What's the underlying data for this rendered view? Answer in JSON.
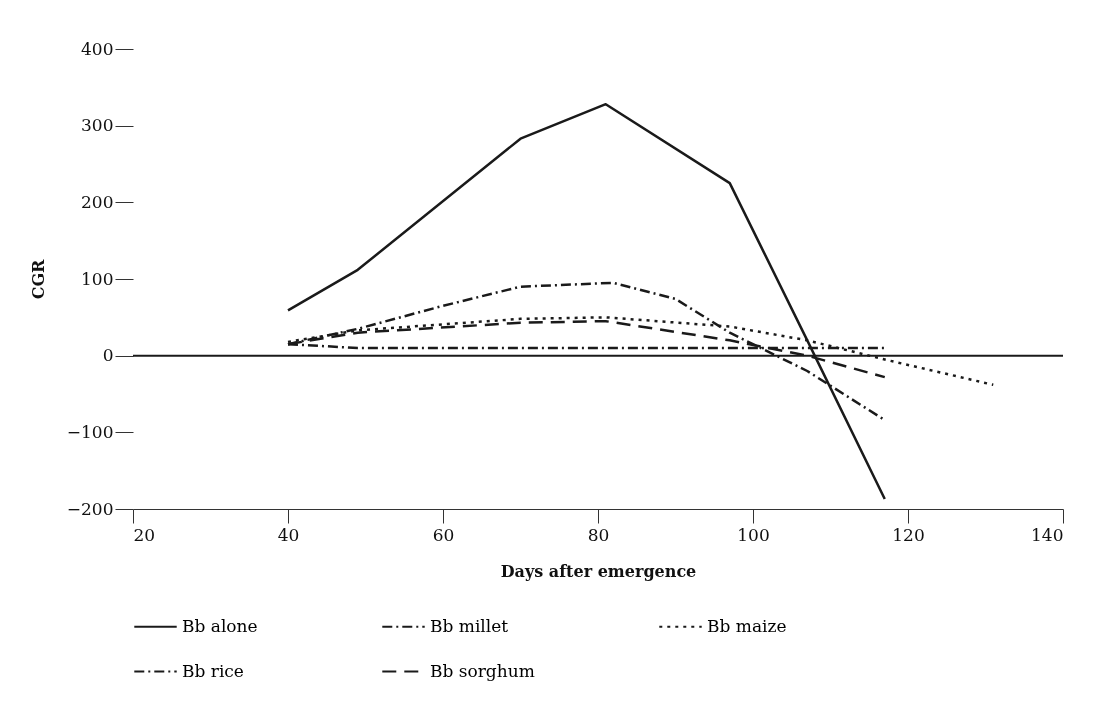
{
  "chart_data": {
    "type": "line",
    "xlabel": "Days after emergence",
    "ylabel": "CGR",
    "x": [
      40,
      49,
      70,
      81,
      97,
      107,
      117
    ],
    "series": [
      {
        "name": "Bb alone",
        "color": "#1a1a1a",
        "line_style": "solid",
        "values": [
          59,
          112,
          283,
          328,
          225,
          20,
          -187
        ]
      },
      {
        "name": "Bb millet",
        "color": "#1a1a1a",
        "line_style": "dashdot",
        "values": [
          15,
          10,
          10,
          10,
          10,
          10,
          10
        ]
      },
      {
        "name": "Bb maize",
        "color": "#1a1a1a",
        "line_style": "dotted",
        "x": [
          40,
          49,
          70,
          81,
          97,
          107,
          117,
          131
        ],
        "values": [
          18,
          33,
          48,
          50,
          38,
          20,
          -5,
          -38
        ]
      },
      {
        "name": "Bb rice",
        "color": "#1a1a1a",
        "line_style": "dashdot",
        "x": [
          40,
          49,
          60,
          70,
          82,
          90,
          97,
          107,
          117
        ],
        "values": [
          15,
          35,
          65,
          90,
          95,
          74,
          30,
          -20,
          -84
        ]
      },
      {
        "name": "Bb sorghum",
        "color": "#1a1a1a",
        "line_style": "dashed",
        "values": [
          15,
          30,
          43,
          45,
          20,
          0,
          -28
        ]
      }
    ],
    "xlim": [
      20,
      140
    ],
    "xticks": [
      20,
      40,
      60,
      80,
      100,
      120,
      140
    ],
    "ylim": [
      -200,
      400
    ],
    "yticks": [
      -200,
      -100,
      0,
      100,
      200,
      300,
      400
    ],
    "ref_lines": [
      {
        "axis": "y",
        "value": 0,
        "color": "#1a1a1a",
        "line_style": "solid"
      }
    ],
    "grid": false,
    "legend": "bottom",
    "marker": "none"
  }
}
